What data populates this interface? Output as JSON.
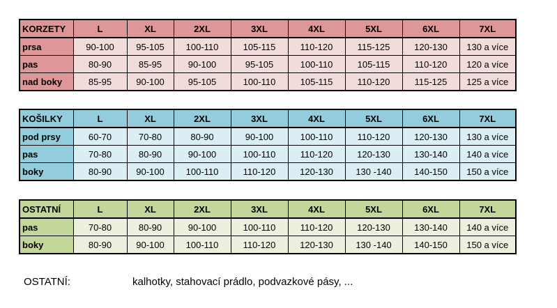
{
  "colors": {
    "korzety_head": "#de9798",
    "korzety_label": "#de9798",
    "korzety_cell": "#f2dcdb",
    "kosilky_head": "#93cddd",
    "kosilky_label": "#93cddd",
    "kosilky_cell": "#daeef3",
    "ostatni_head": "#c4d79b",
    "ostatni_label": "#c4d79b",
    "ostatni_cell": "#ebf1de"
  },
  "sizes": [
    "L",
    "XL",
    "2XL",
    "3XL",
    "4XL",
    "5XL",
    "6XL",
    "7XL"
  ],
  "tables": [
    {
      "title": "KORZETY",
      "rows": [
        {
          "label": "prsa",
          "values": [
            "90-100",
            "95-105",
            "100-110",
            "105-115",
            "110-120",
            "115-125",
            "120-130",
            "130 a více"
          ]
        },
        {
          "label": "pas",
          "values": [
            "80-90",
            "85-95",
            "90-100",
            "95-105",
            "100-110",
            "105-115",
            "110-120",
            "120 a více"
          ]
        },
        {
          "label": "nad boky",
          "values": [
            "85-95",
            "90-100",
            "95-105",
            "100-110",
            "105-115",
            "110-120",
            "115-125",
            "125 a více"
          ]
        }
      ]
    },
    {
      "title": "KOŠILKY",
      "rows": [
        {
          "label": "pod prsy",
          "values": [
            "60-70",
            "70-80",
            "80-90",
            "90-100",
            "100-110",
            "110-120",
            "120-130",
            "130 a více"
          ]
        },
        {
          "label": "pas",
          "values": [
            "70-80",
            "80-90",
            "90-100",
            "100-110",
            "110-120",
            "120-130",
            "130-140",
            "140 a více"
          ]
        },
        {
          "label": "boky",
          "values": [
            "80-90",
            "90-100",
            "100-110",
            "110-120",
            "120-130",
            "130 -140",
            "140-150",
            "150 a více"
          ]
        }
      ]
    },
    {
      "title": "OSTATNÍ",
      "rows": [
        {
          "label": "pas",
          "values": [
            "70-80",
            "80-90",
            "90-100",
            "100-110",
            "110-120",
            "120-130",
            "130-140",
            "140 a více"
          ]
        },
        {
          "label": "boky",
          "values": [
            "80-90",
            "90-100",
            "100-110",
            "110-120",
            "120-130",
            "130 -140",
            "140-150",
            "150 a více"
          ]
        }
      ]
    }
  ],
  "footer": {
    "label": "OSTATNÍ:",
    "text": "kalhotky, stahovací prádlo, podvazkové pásy, ..."
  }
}
